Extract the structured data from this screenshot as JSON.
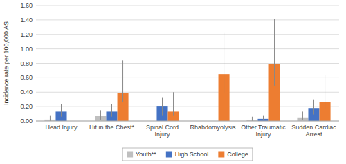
{
  "chart_data": {
    "type": "bar",
    "ylabel": "Incidence rate per 100,000 AS",
    "categories": [
      "Head Injury",
      "Hit in the Chest*",
      "Spinal Cord Injury",
      "Rhabdomyolysis",
      "Other Traumatic Injury",
      "Sudden Cardiac Arrest"
    ],
    "series": [
      {
        "name": "Youth**",
        "color": "#bfbfbf",
        "values": [
          0.02,
          0.07,
          0.0,
          0.0,
          0.01,
          0.05
        ],
        "errors_lo": [
          0.02,
          0.05,
          0.0,
          0.0,
          0.01,
          0.03
        ],
        "errors_hi": [
          0.06,
          0.08,
          0.0,
          0.0,
          0.05,
          0.08
        ]
      },
      {
        "name": "High School",
        "color": "#4472c4",
        "values": [
          0.13,
          0.13,
          0.21,
          0.0,
          0.03,
          0.18
        ],
        "errors_lo": [
          0.07,
          0.07,
          0.13,
          0.0,
          0.02,
          0.09
        ],
        "errors_hi": [
          0.1,
          0.1,
          0.12,
          0.0,
          0.05,
          0.12
        ]
      },
      {
        "name": "College",
        "color": "#ed7d31",
        "values": [
          0.0,
          0.39,
          0.13,
          0.65,
          0.79,
          0.26
        ],
        "errors_lo": [
          0.0,
          0.13,
          0.05,
          0.27,
          0.3,
          0.1
        ],
        "errors_hi": [
          0.0,
          0.45,
          0.27,
          0.58,
          0.62,
          0.38
        ]
      }
    ],
    "ylim": [
      0.0,
      1.6
    ],
    "yticks": [
      {
        "value": 0.0,
        "label": "0.00"
      },
      {
        "value": 0.2,
        "label": "0.20"
      },
      {
        "value": 0.4,
        "label": "0.40"
      },
      {
        "value": 0.6,
        "label": "0.60"
      },
      {
        "value": 0.8,
        "label": "0.80"
      },
      {
        "value": 1.0,
        "label": "1.00"
      },
      {
        "value": 1.2,
        "label": "1.20"
      },
      {
        "value": 1.4,
        "label": "1.40"
      },
      {
        "value": 1.6,
        "label": "1.60"
      }
    ],
    "grid": true,
    "legend": "bottom"
  }
}
